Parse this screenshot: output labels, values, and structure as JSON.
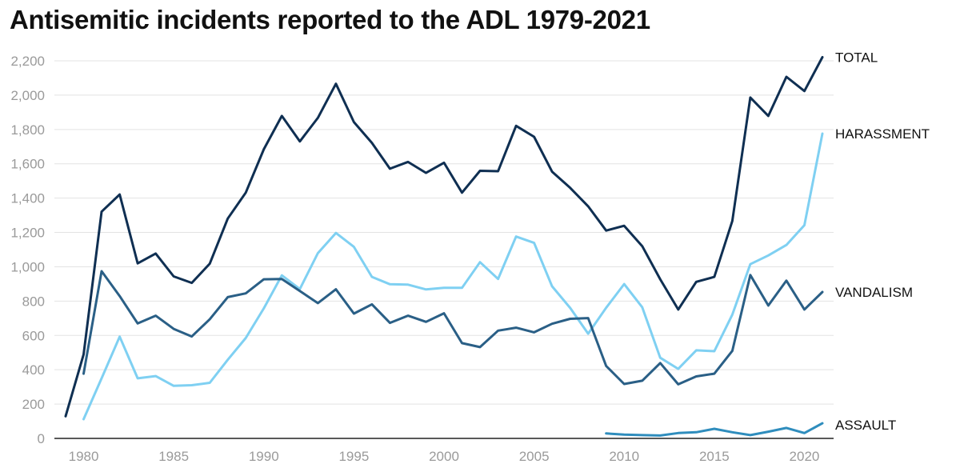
{
  "chart_data": {
    "type": "line",
    "title": "Antisemitic incidents reported to the ADL 1979-2021",
    "xlabel": "",
    "ylabel": "",
    "xlim": [
      1979,
      2021
    ],
    "ylim": [
      0,
      2200
    ],
    "x_ticks": [
      1980,
      1985,
      1990,
      1995,
      2000,
      2005,
      2010,
      2015,
      2020
    ],
    "y_ticks": [
      0,
      200,
      400,
      600,
      800,
      1000,
      1200,
      1400,
      1600,
      1800,
      2000,
      2200
    ],
    "grid": true,
    "legend": "inline labels at line ends",
    "series": [
      {
        "name": "TOTAL",
        "color": "#0f2f52",
        "x": [
          1979,
          1980,
          1981,
          1982,
          1983,
          1984,
          1985,
          1986,
          1987,
          1988,
          1989,
          1990,
          1991,
          1992,
          1993,
          1994,
          1995,
          1996,
          1997,
          1998,
          1999,
          2000,
          2001,
          2002,
          2003,
          2004,
          2005,
          2006,
          2007,
          2008,
          2009,
          2010,
          2011,
          2012,
          2013,
          2014,
          2015,
          2016,
          2017,
          2018,
          2019,
          2020,
          2021
        ],
        "values": [
          129,
          489,
          1321,
          1421,
          1020,
          1077,
          944,
          906,
          1018,
          1281,
          1432,
          1685,
          1879,
          1730,
          1867,
          2066,
          1843,
          1722,
          1571,
          1611,
          1547,
          1606,
          1432,
          1559,
          1557,
          1821,
          1757,
          1554,
          1460,
          1352,
          1211,
          1239,
          1120,
          927,
          751,
          912,
          941,
          1267,
          1986,
          1879,
          2107,
          2024,
          2221
        ]
      },
      {
        "name": "HARASSMENT",
        "color": "#7fd0f2",
        "x": [
          1980,
          1981,
          1982,
          1983,
          1984,
          1985,
          1986,
          1987,
          1988,
          1989,
          1990,
          1991,
          1992,
          1993,
          1994,
          1995,
          1996,
          1997,
          1998,
          1999,
          2000,
          2001,
          2002,
          2003,
          2004,
          2005,
          2006,
          2007,
          2008,
          2009,
          2010,
          2011,
          2012,
          2013,
          2014,
          2015,
          2016,
          2017,
          2018,
          2019,
          2020,
          2021
        ],
        "values": [
          112,
          350,
          593,
          350,
          363,
          306,
          310,
          324,
          458,
          585,
          758,
          950,
          870,
          1079,
          1197,
          1116,
          941,
          898,
          896,
          868,
          877,
          877,
          1027,
          929,
          1176,
          1139,
          886,
          760,
          610,
          761,
          899,
          764,
          470,
          405,
          513,
          508,
          721,
          1015,
          1066,
          1127,
          1242,
          1776
        ]
      },
      {
        "name": "VANDALISM",
        "color": "#2a5f86",
        "x": [
          1980,
          1981,
          1982,
          1983,
          1984,
          1985,
          1986,
          1987,
          1988,
          1989,
          1990,
          1991,
          1992,
          1993,
          1994,
          1995,
          1996,
          1997,
          1998,
          1999,
          2000,
          2001,
          2002,
          2003,
          2004,
          2005,
          2006,
          2007,
          2008,
          2009,
          2010,
          2011,
          2012,
          2013,
          2014,
          2015,
          2016,
          2017,
          2018,
          2019,
          2020,
          2021
        ],
        "values": [
          377,
          974,
          829,
          670,
          715,
          638,
          594,
          694,
          823,
          845,
          927,
          929,
          859,
          788,
          869,
          727,
          781,
          673,
          715,
          679,
          729,
          555,
          532,
          628,
          645,
          618,
          668,
          697,
          701,
          422,
          317,
          336,
          439,
          315,
          361,
          377,
          510,
          952,
          774,
          919,
          751,
          853
        ]
      },
      {
        "name": "ASSAULT",
        "color": "#2f8dbd",
        "x": [
          2009,
          2010,
          2011,
          2012,
          2013,
          2014,
          2015,
          2016,
          2017,
          2018,
          2019,
          2020,
          2021
        ],
        "values": [
          29,
          22,
          19,
          17,
          31,
          36,
          56,
          36,
          19,
          39,
          61,
          31,
          88
        ]
      }
    ]
  }
}
